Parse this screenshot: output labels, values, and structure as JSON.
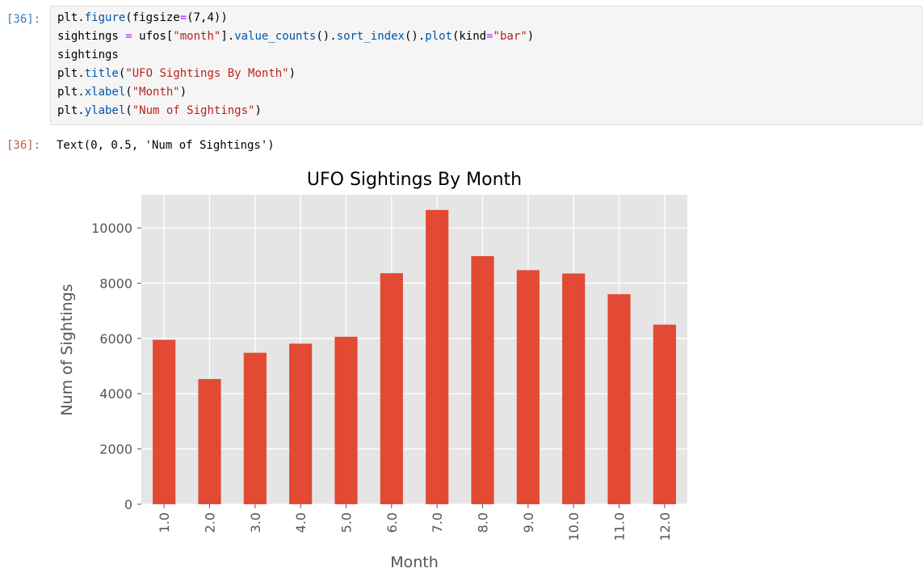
{
  "input_prompt": "[36]:",
  "output_prompt": "[36]:",
  "code": {
    "l1a": "plt.",
    "l1b": "figure",
    "l1c": "(figsize",
    "l1d": "=",
    "l1e": "(7,4))",
    "l2a": "sightings ",
    "l2b": "=",
    "l2c": " ufos[",
    "l2d": "\"month\"",
    "l2e": "].",
    "l2f": "value_counts",
    "l2g": "().",
    "l2h": "sort_index",
    "l2i": "().",
    "l2j": "plot",
    "l2k": "(kind",
    "l2l": "=",
    "l2m": "\"bar\"",
    "l2n": ")",
    "l3": "sightings",
    "l4a": "plt.",
    "l4b": "title",
    "l4c": "(",
    "l4d": "\"UFO Sightings By Month\"",
    "l4e": ")",
    "l5a": "plt.",
    "l5b": "xlabel",
    "l5c": "(",
    "l5d": "\"Month\"",
    "l5e": ")",
    "l6a": "plt.",
    "l6b": "ylabel",
    "l6c": "(",
    "l6d": "\"Num of Sightings\"",
    "l6e": ")"
  },
  "output_text": "Text(0, 0.5, 'Num of Sightings')",
  "colors": {
    "bar": "#e24a33",
    "plot_bg": "#e5e5e5",
    "grid": "#ffffff",
    "text": "#555555"
  },
  "chart_data": {
    "type": "bar",
    "title": "UFO Sightings By Month",
    "xlabel": "Month",
    "ylabel": "Num of Sightings",
    "categories": [
      "1.0",
      "2.0",
      "3.0",
      "4.0",
      "5.0",
      "6.0",
      "7.0",
      "8.0",
      "9.0",
      "10.0",
      "11.0",
      "12.0"
    ],
    "values": [
      5950,
      4530,
      5480,
      5810,
      6060,
      8360,
      10650,
      8980,
      8470,
      8350,
      7600,
      6500
    ],
    "yticks": [
      0,
      2000,
      4000,
      6000,
      8000,
      10000
    ],
    "ylim": [
      0,
      11200
    ],
    "grid": true
  }
}
